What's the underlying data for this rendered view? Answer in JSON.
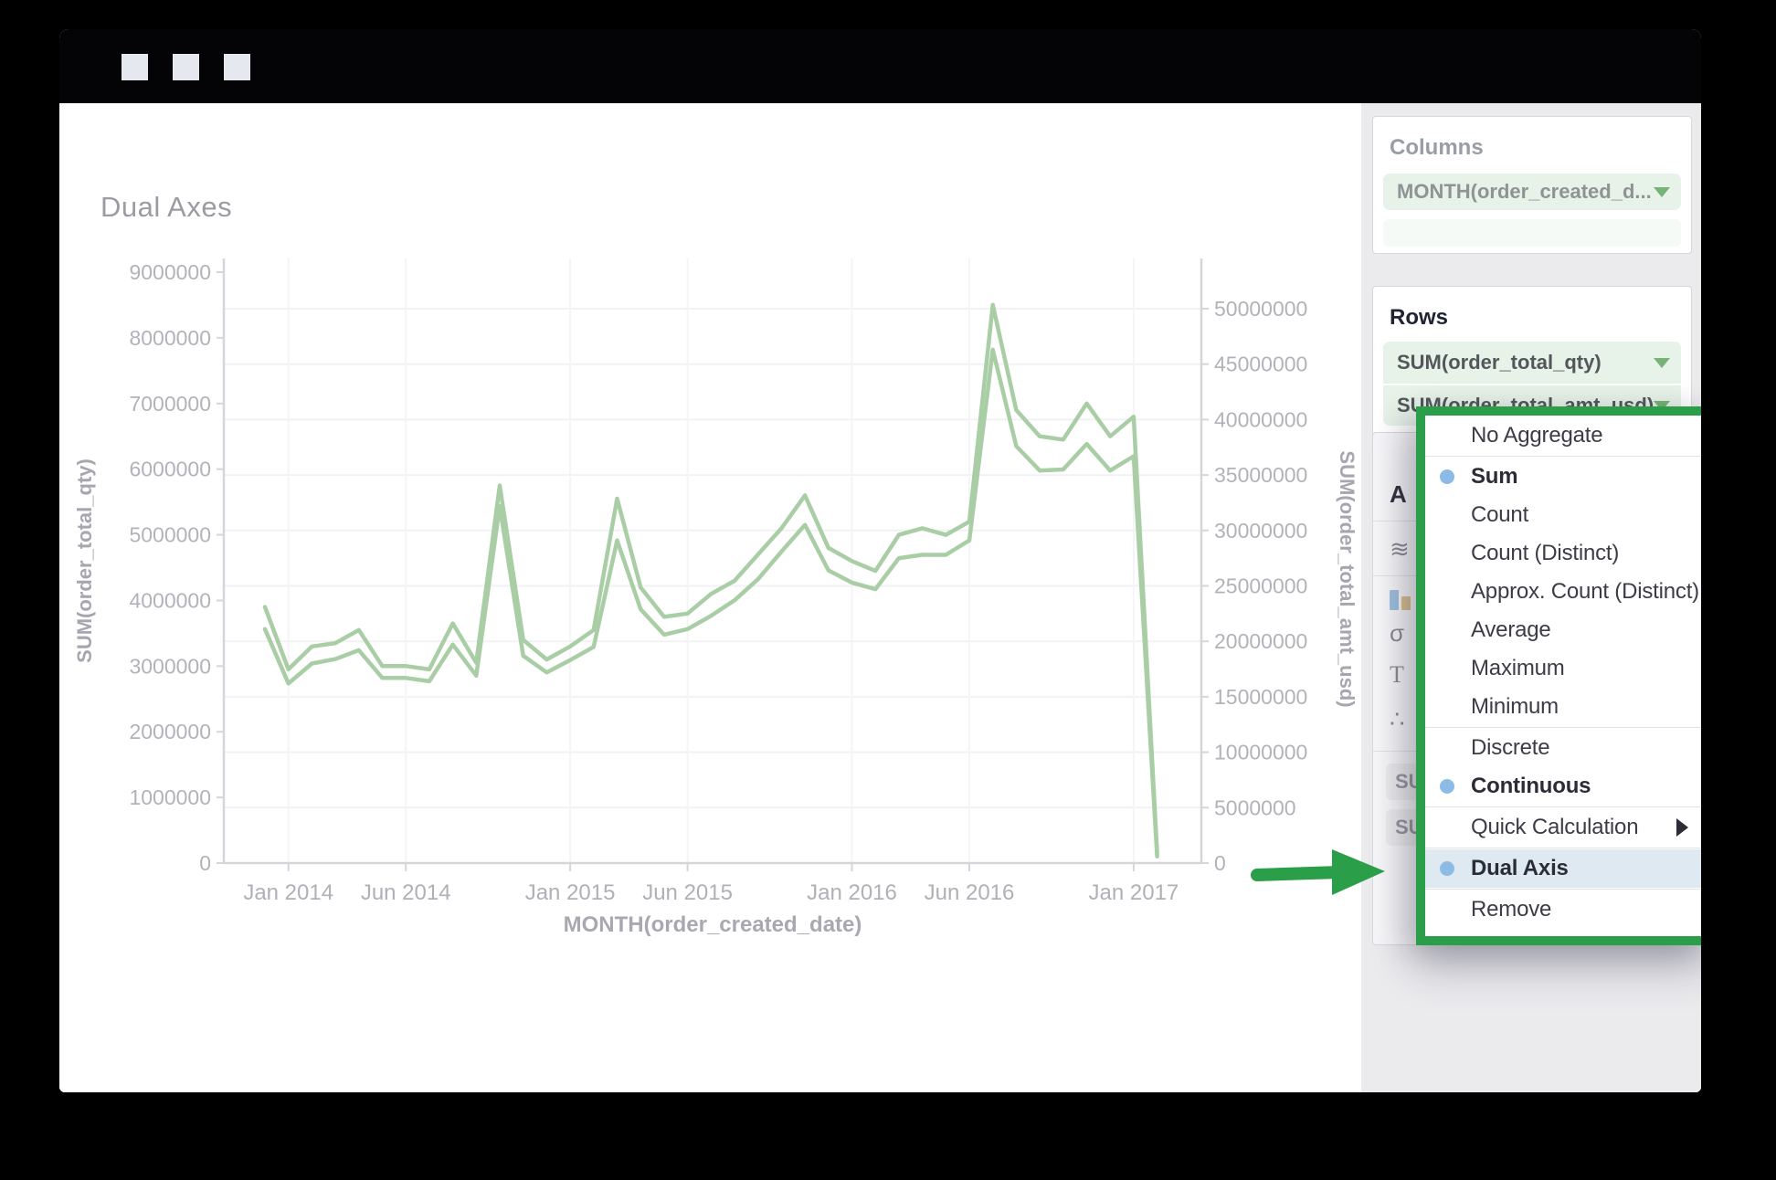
{
  "window": {
    "title_bar": {
      "square_count": 3
    }
  },
  "chart": {
    "title": "Dual Axes",
    "left_axis": {
      "title": "SUM(order_total_qty)",
      "tick_labels": [
        "0",
        "1000000",
        "2000000",
        "3000000",
        "4000000",
        "5000000",
        "6000000",
        "7000000",
        "8000000",
        "9000000"
      ]
    },
    "right_axis": {
      "title": "SUM(order_total_amt_usd)",
      "tick_labels": [
        "0",
        "5000000",
        "10000000",
        "15000000",
        "20000000",
        "25000000",
        "30000000",
        "35000000",
        "40000000",
        "45000000",
        "50000000"
      ]
    },
    "x_axis": {
      "title": "MONTH(order_created_date)",
      "tick_labels": [
        "Jan 2014",
        "Jun 2014",
        "Jan 2015",
        "Jun 2015",
        "Jan 2016",
        "Jun 2016",
        "Jan 2017"
      ],
      "tick_indices": [
        1,
        6,
        13,
        18,
        25,
        30,
        37
      ]
    }
  },
  "chart_data": {
    "type": "line",
    "title": "Dual Axes",
    "xlabel": "MONTH(order_created_date)",
    "x": [
      "Dec 2013",
      "Jan 2014",
      "Feb 2014",
      "Mar 2014",
      "Apr 2014",
      "May 2014",
      "Jun 2014",
      "Jul 2014",
      "Aug 2014",
      "Sep 2014",
      "Oct 2014",
      "Nov 2014",
      "Dec 2014",
      "Jan 2015",
      "Feb 2015",
      "Mar 2015",
      "Apr 2015",
      "May 2015",
      "Jun 2015",
      "Jul 2015",
      "Aug 2015",
      "Sep 2015",
      "Oct 2015",
      "Nov 2015",
      "Dec 2015",
      "Jan 2016",
      "Feb 2016",
      "Mar 2016",
      "Apr 2016",
      "May 2016",
      "Jun 2016",
      "Jul 2016",
      "Aug 2016",
      "Sep 2016",
      "Oct 2016",
      "Nov 2016",
      "Dec 2016",
      "Jan 2017",
      "Feb 2017"
    ],
    "series": [
      {
        "name": "SUM(order_total_qty)",
        "axis": "left",
        "values": [
          3900000,
          2950000,
          3300000,
          3350000,
          3550000,
          3000000,
          3000000,
          2950000,
          3650000,
          3050000,
          5750000,
          3400000,
          3100000,
          3300000,
          3550000,
          5550000,
          4200000,
          3750000,
          3800000,
          4100000,
          4300000,
          4700000,
          5100000,
          5600000,
          4800000,
          4600000,
          4450000,
          5000000,
          5100000,
          5000000,
          5200000,
          8500000,
          6900000,
          6500000,
          6450000,
          7000000,
          6500000,
          6800000,
          150000
        ]
      },
      {
        "name": "SUM(order_total_amt_usd)",
        "axis": "right",
        "values": [
          21100000,
          16200000,
          18000000,
          18400000,
          19200000,
          16700000,
          16700000,
          16400000,
          19700000,
          16900000,
          32200000,
          18700000,
          17200000,
          18300000,
          19500000,
          29100000,
          22900000,
          20600000,
          21100000,
          22300000,
          23700000,
          25600000,
          28100000,
          30500000,
          26400000,
          25300000,
          24700000,
          27500000,
          27800000,
          27800000,
          29100000,
          46300000,
          37600000,
          35400000,
          35500000,
          37800000,
          35400000,
          36700000,
          600000
        ]
      }
    ],
    "left_ylim": [
      0,
      9500000
    ],
    "right_ylim": [
      0,
      52500000
    ],
    "grid": "horizontal-and-vertical-faint",
    "line_color": "#a9cda5",
    "legend_position": "none"
  },
  "sidebar": {
    "columns": {
      "label": "Columns",
      "pill": "MONTH(order_created_d..."
    },
    "rows": {
      "label": "Rows",
      "pills": [
        "SUM(order_total_qty)",
        "SUM(order_total_amt_usd)"
      ]
    },
    "menu": {
      "border_color": "#2b9e4a",
      "items": [
        {
          "label": "No Aggregate",
          "divider_after": true
        },
        {
          "label": "Sum",
          "bold": true,
          "bullet": true
        },
        {
          "label": "Count"
        },
        {
          "label": "Count (Distinct)"
        },
        {
          "label": "Approx. Count (Distinct)"
        },
        {
          "label": "Average"
        },
        {
          "label": "Maximum"
        },
        {
          "label": "Minimum",
          "divider_after": true
        },
        {
          "label": "Discrete"
        },
        {
          "label": "Continuous",
          "bold": true,
          "bullet": true,
          "divider_after": true
        },
        {
          "label": "Quick Calculation",
          "submenu": true,
          "divider_after": true
        },
        {
          "label": "Dual Axis",
          "bold": true,
          "bullet": true,
          "highlighted": true,
          "divider_after": true
        },
        {
          "label": "Remove"
        }
      ]
    },
    "hidden_panel": {
      "header": "A",
      "pill_fragments": [
        "SU",
        "SU"
      ]
    }
  },
  "colors": {
    "menu_green": "#2b9e4a",
    "pill_green_bg": "#e7f2e8",
    "pill_arrow_green": "#76b376",
    "line_green": "#a9cda5",
    "bullet_blue": "#8cbce6",
    "highlight_blue": "#dfe9f2",
    "axis_text": "#b2b2b9"
  }
}
